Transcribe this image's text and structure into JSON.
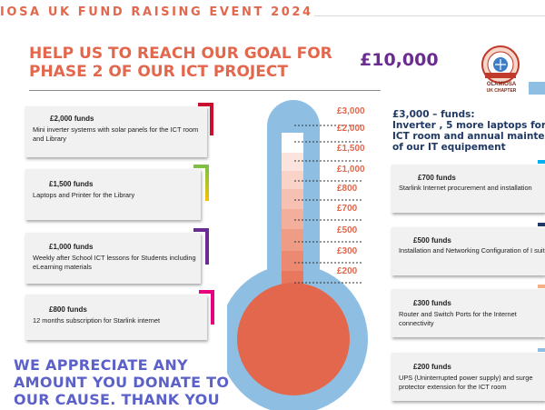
{
  "header": {
    "event_title": "IOSA UK FUND RAISING EVENT 2024",
    "headline_line1": "HELP US TO REACH OUR GOAL FOR",
    "headline_line2": "PHASE 2 OF OUR ICT PROJECT",
    "goal_amount": "£10,000"
  },
  "logo": {
    "line1": "OLAMIOSA",
    "line2": "UK CHAPTER"
  },
  "left_items": [
    {
      "title": "£2,000  funds",
      "description": "Mini inverter systems with solar panels for the ICT room and Library",
      "accent": "#c8102e"
    },
    {
      "title": "£1,500 funds",
      "description": "Laptops and Printer for the Library",
      "accent": "#7cc142"
    },
    {
      "title": "£1,000 funds",
      "description": "Weekly after School ICT lessons for Students including eLearning materials",
      "accent": "#6a2c91"
    },
    {
      "title": "£800 funds",
      "description": "12 months subscription for Starlink internet",
      "accent": "#e6007e"
    }
  ],
  "right_heading": {
    "line1": "£3,000 – funds:",
    "line2": "Inverter , 5 more laptops for",
    "line3": "ICT room and annual mainte",
    "line4": "of our IT equipement"
  },
  "right_items": [
    {
      "title": "£700 funds",
      "description": "Starlink Internet procurement and installation",
      "accent": "#00b0f0"
    },
    {
      "title": "£500 funds",
      "description": "Installation and Networking  Configuration of I suite",
      "accent": "#1f3864"
    },
    {
      "title": "£300 funds",
      "description": "Router and Switch Ports for the Internet connectivity",
      "accent": "#f4b183"
    },
    {
      "title": "£200 funds",
      "description": "UPS (Uninterrupted power supply) and surge protector extension for the ICT room",
      "accent": "#8ebfe3"
    }
  ],
  "thermometer": {
    "tick_labels": [
      "£3,000",
      "£2,000",
      "£1,500",
      "£1,000",
      "£800",
      "£700",
      "£500",
      "£300",
      "£200"
    ],
    "colors": {
      "outer": "#8ebfe3",
      "bulb": "#e3674c",
      "mercury_top": "#fbe5df"
    }
  },
  "footer": {
    "line1": "WE APPRECIATE ANY",
    "line2": "AMOUNT YOU DONATE TO",
    "line3": "OUR CAUSE. THANK YOU"
  }
}
